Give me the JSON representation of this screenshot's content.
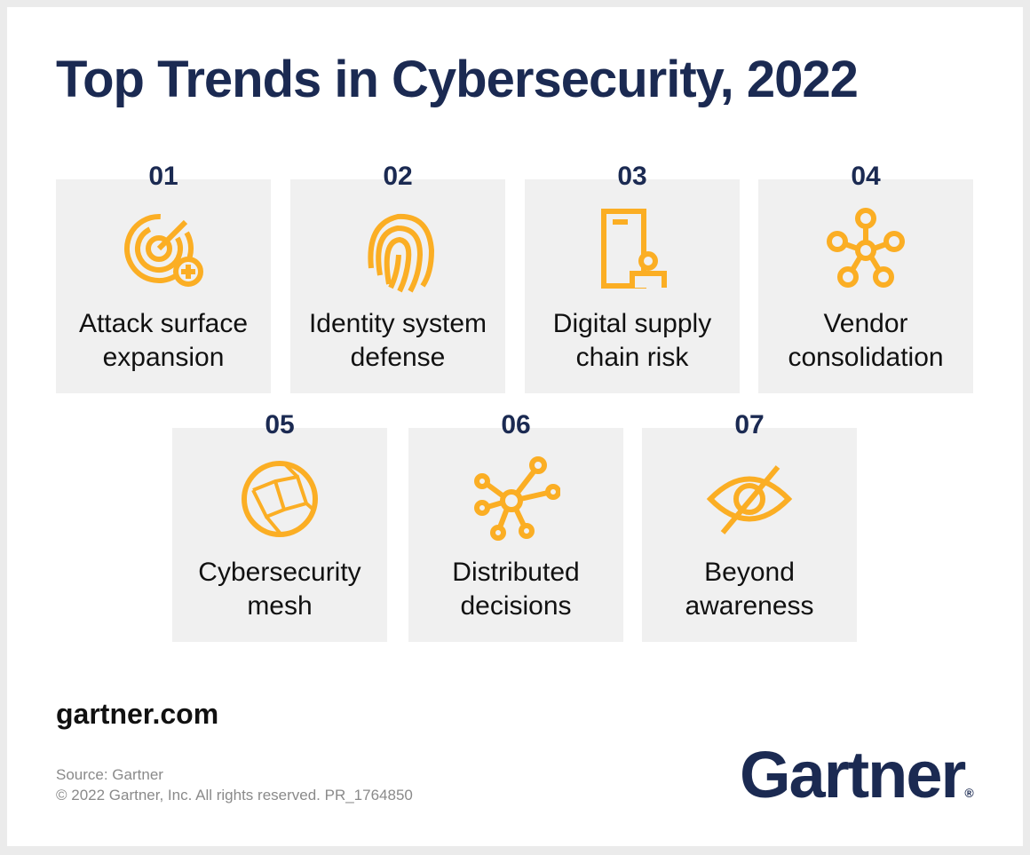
{
  "title": "Top Trends in Cybersecurity, 2022",
  "accent_color": "#fbae24",
  "trends": [
    {
      "number": "01",
      "label_line1": "Attack surface",
      "label_line2": "expansion",
      "icon": "radar-plus-icon"
    },
    {
      "number": "02",
      "label_line1": "Identity system",
      "label_line2": "defense",
      "icon": "fingerprint-icon"
    },
    {
      "number": "03",
      "label_line1": "Digital supply",
      "label_line2": "chain risk",
      "icon": "door-person-icon"
    },
    {
      "number": "04",
      "label_line1": "Vendor",
      "label_line2": "consolidation",
      "icon": "hub-nodes-icon"
    },
    {
      "number": "05",
      "label_line1": "Cybersecurity",
      "label_line2": "mesh",
      "icon": "mesh-globe-icon"
    },
    {
      "number": "06",
      "label_line1": "Distributed",
      "label_line2": "decisions",
      "icon": "network-icon"
    },
    {
      "number": "07",
      "label_line1": "Beyond",
      "label_line2": "awareness",
      "icon": "eye-slash-icon"
    }
  ],
  "footer": {
    "site": "gartner.com",
    "source": "Source: Gartner",
    "copyright": "© 2022 Gartner, Inc. All rights reserved. PR_1764850",
    "logo": "Gartner",
    "logo_mark": "®"
  }
}
